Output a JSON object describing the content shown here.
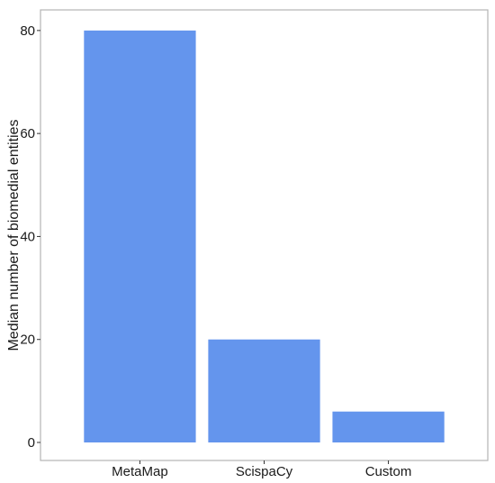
{
  "chart_data": {
    "type": "bar",
    "categories": [
      "MetaMap",
      "ScispaCy",
      "Custom"
    ],
    "values": [
      80,
      20,
      6
    ],
    "title": "",
    "xlabel": "",
    "ylabel": "Median number of biomedial entities",
    "ylim": [
      -3.5,
      84
    ],
    "yticks": [
      0,
      20,
      40,
      60,
      80
    ],
    "grid": false,
    "bar_color": "#6495ED",
    "frame_color": "#b3b3b3",
    "legend": "none"
  }
}
